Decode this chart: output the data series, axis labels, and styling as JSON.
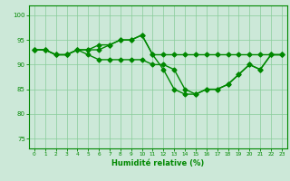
{
  "title": "",
  "xlabel": "Humidité relative (%)",
  "ylabel": "",
  "background_color": "#cce8d8",
  "grid_color": "#88cc99",
  "line_color": "#008800",
  "marker": "D",
  "markersize": 2.5,
  "linewidth": 1.0,
  "xlim": [
    -0.5,
    23.5
  ],
  "ylim": [
    73,
    102
  ],
  "yticks": [
    75,
    80,
    85,
    90,
    95,
    100
  ],
  "xticks": [
    0,
    1,
    2,
    3,
    4,
    5,
    6,
    7,
    8,
    9,
    10,
    11,
    12,
    13,
    14,
    15,
    16,
    17,
    18,
    19,
    20,
    21,
    22,
    23
  ],
  "series": [
    [
      93,
      93,
      92,
      92,
      93,
      93,
      94,
      94,
      95,
      95,
      96,
      92,
      92,
      92,
      92,
      92,
      92,
      92,
      92,
      92,
      92,
      92,
      92,
      92
    ],
    [
      93,
      93,
      92,
      92,
      93,
      93,
      93,
      94,
      95,
      95,
      96,
      92,
      89,
      85,
      84,
      84,
      85,
      85,
      86,
      88,
      90,
      89,
      92,
      92
    ],
    [
      93,
      93,
      92,
      92,
      93,
      92,
      91,
      91,
      91,
      91,
      91,
      90,
      90,
      89,
      85,
      84,
      85,
      85,
      86,
      88,
      90,
      89,
      92,
      92
    ]
  ]
}
